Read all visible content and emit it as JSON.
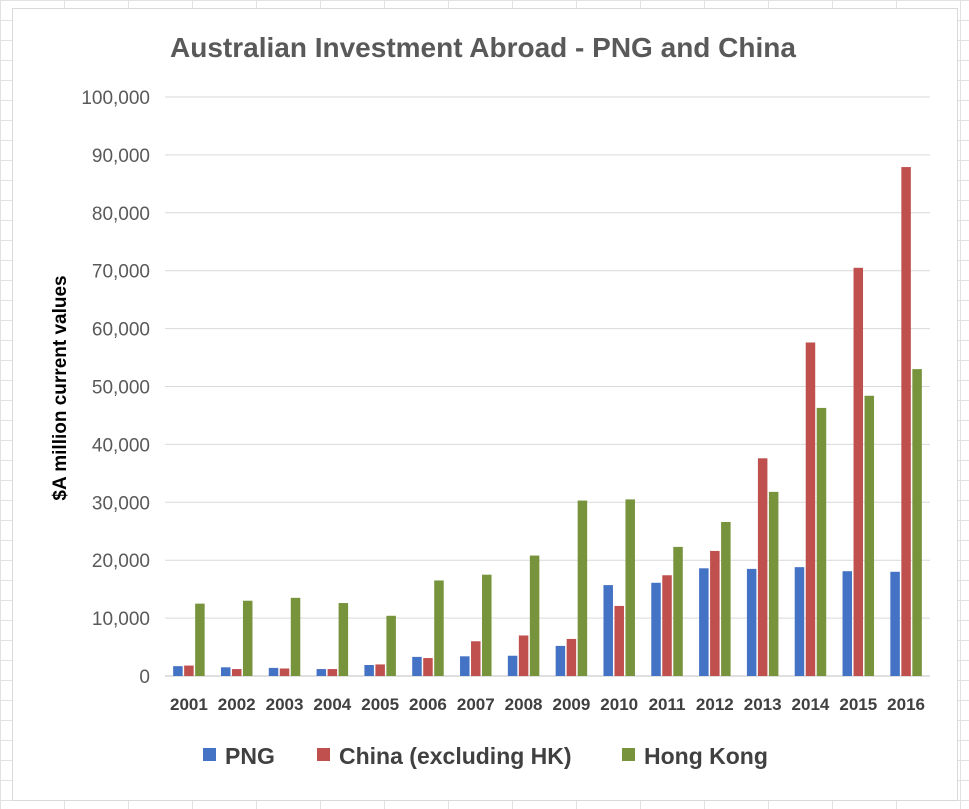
{
  "chart_data": {
    "type": "bar",
    "title": "Australian Investment Abroad - PNG and China",
    "xlabel": "",
    "ylabel": "$A million current values",
    "ylim": [
      0,
      100000
    ],
    "yticks": [
      "0",
      "10,000",
      "20,000",
      "30,000",
      "40,000",
      "50,000",
      "60,000",
      "70,000",
      "80,000",
      "90,000",
      "100,000"
    ],
    "categories": [
      "2001",
      "2002",
      "2003",
      "2004",
      "2005",
      "2006",
      "2007",
      "2008",
      "2009",
      "2010",
      "2011",
      "2012",
      "2013",
      "2014",
      "2015",
      "2016"
    ],
    "series": [
      {
        "name": "PNG",
        "color": "#4472c4",
        "values": [
          1700,
          1500,
          1400,
          1200,
          1900,
          3300,
          3400,
          3500,
          5200,
          15700,
          16100,
          18600,
          18500,
          18800,
          18100,
          18000
        ]
      },
      {
        "name": "China (excluding HK)",
        "color": "#c0504d",
        "values": [
          1800,
          1200,
          1300,
          1200,
          2000,
          3100,
          6000,
          7000,
          6400,
          12100,
          17400,
          21600,
          37600,
          57600,
          70500,
          87900
        ]
      },
      {
        "name": "Hong Kong",
        "color": "#77933c",
        "values": [
          12500,
          13000,
          13500,
          12600,
          10400,
          16500,
          17500,
          20800,
          30300,
          30500,
          22300,
          26600,
          31800,
          46300,
          48400,
          53000
        ]
      }
    ],
    "grid": true,
    "legend_position": "bottom"
  }
}
